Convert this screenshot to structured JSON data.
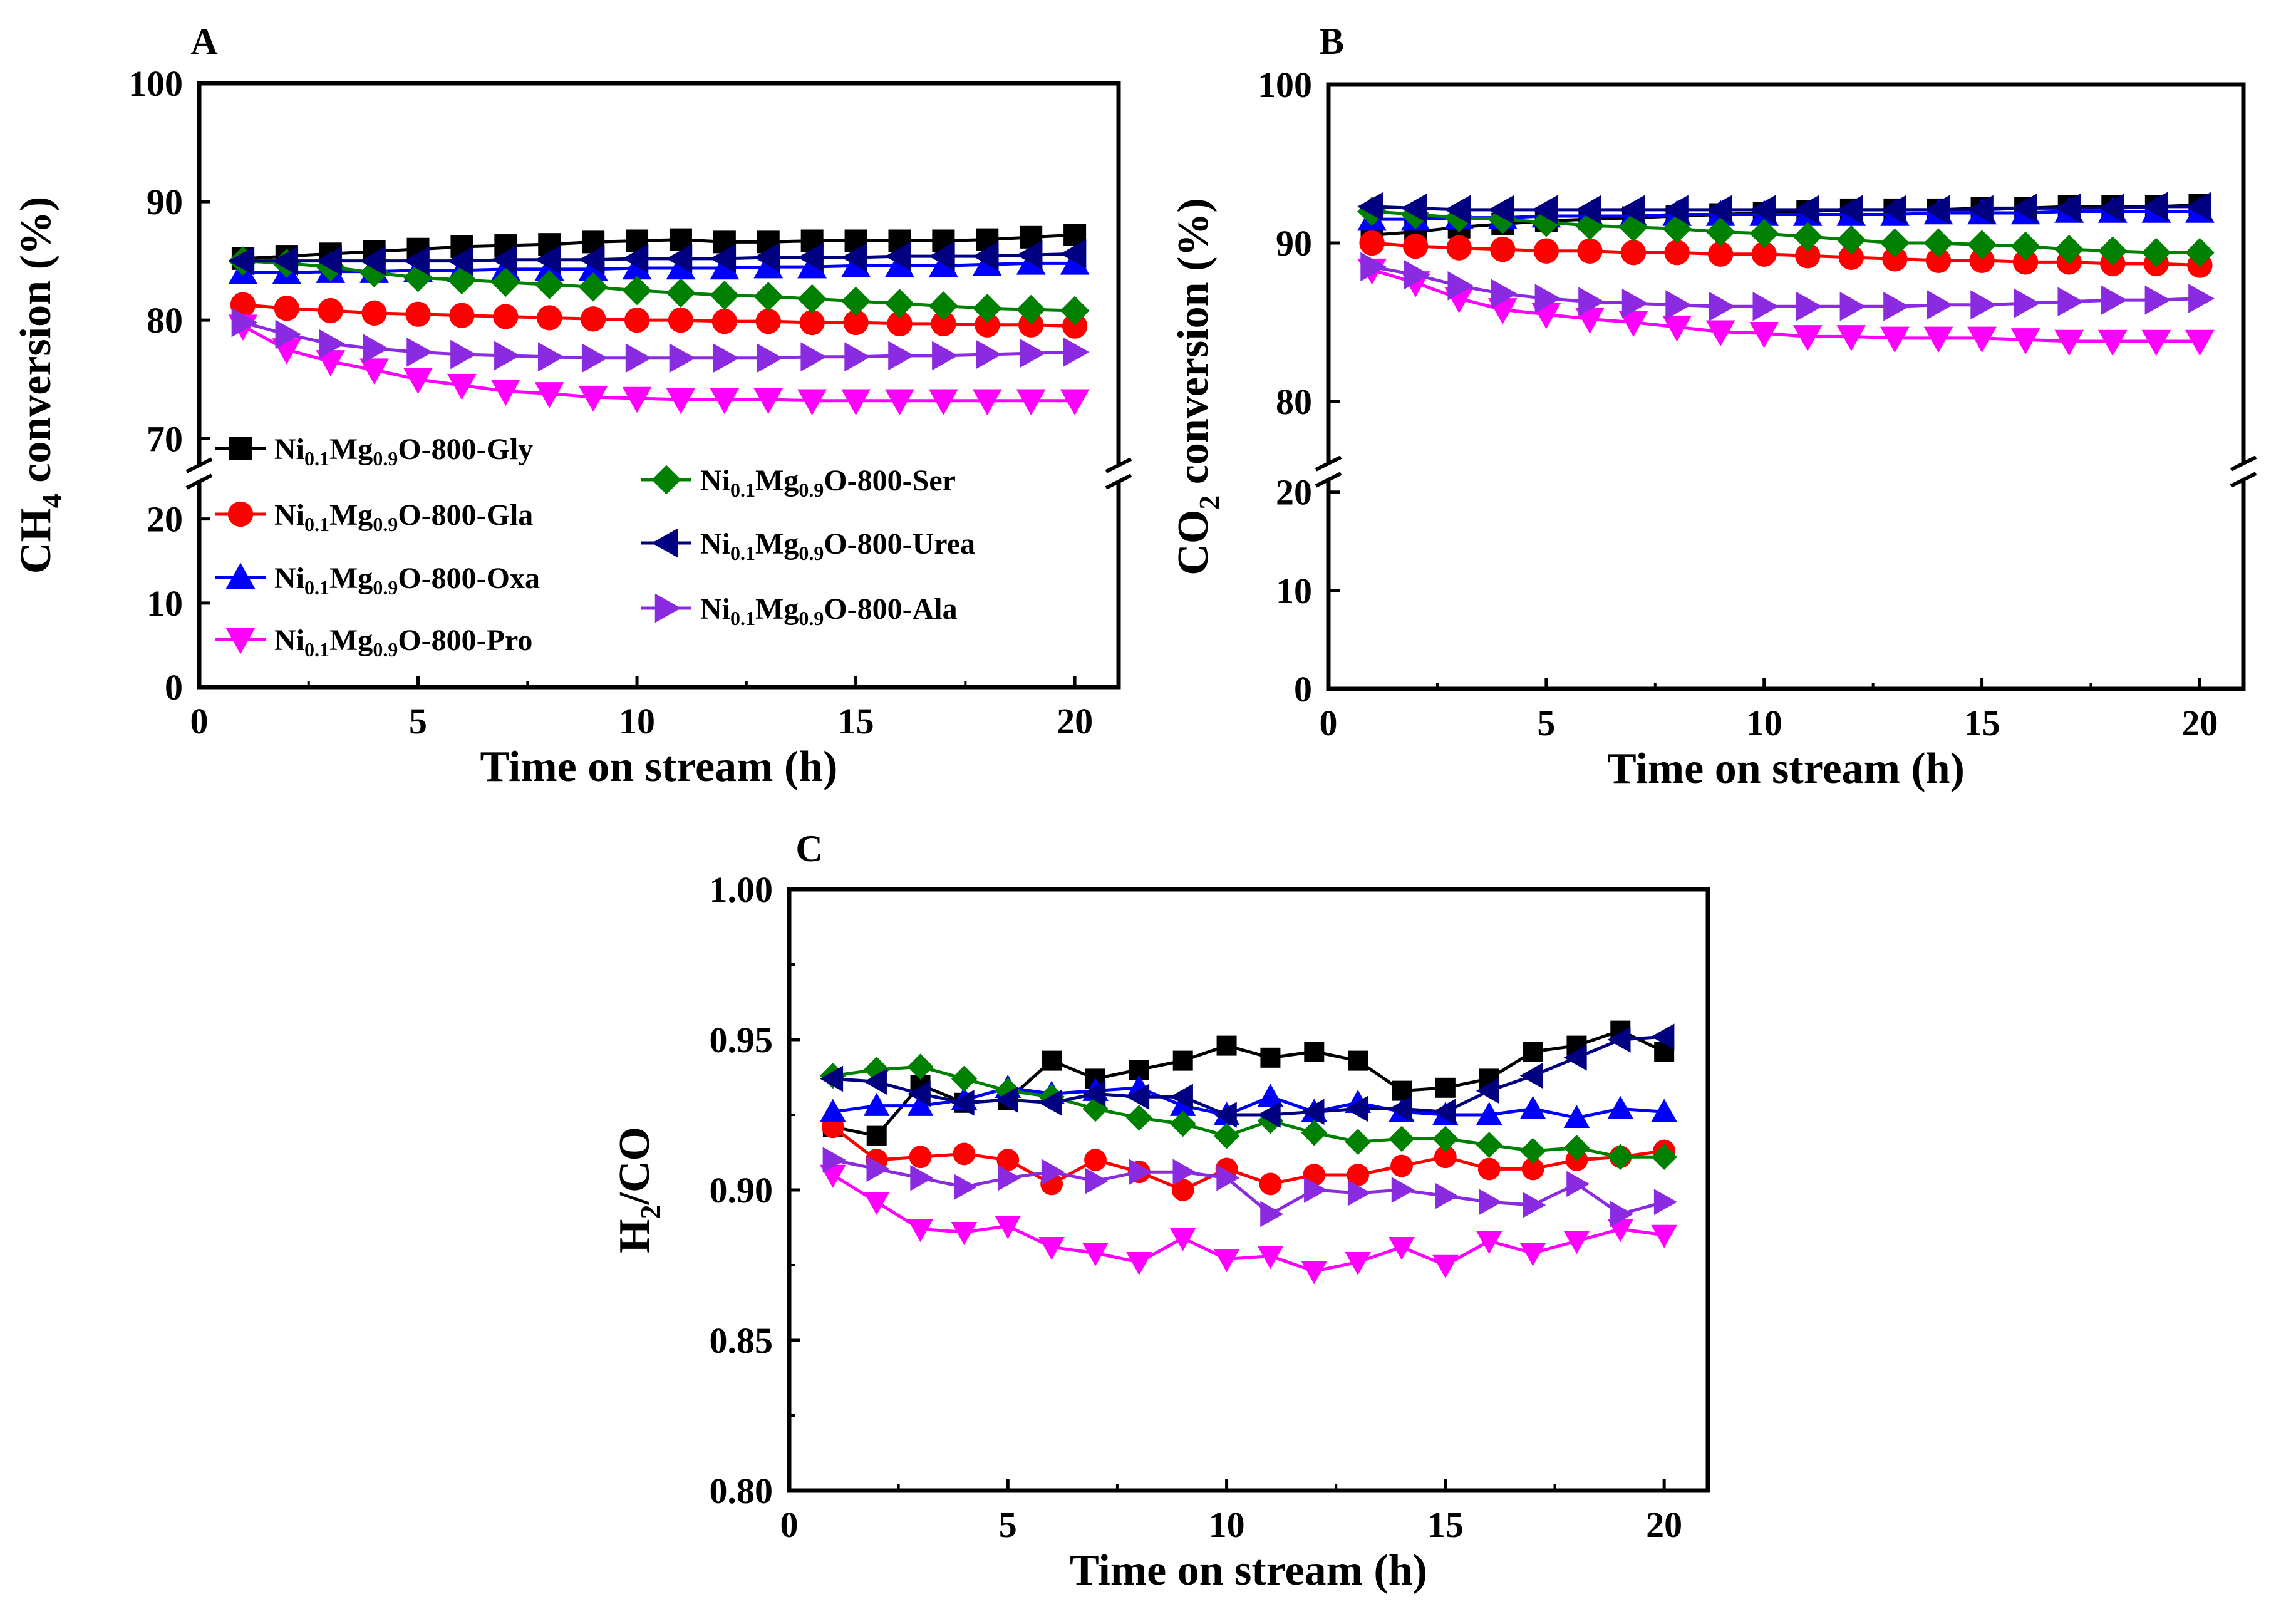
{
  "chart_data": [
    {
      "panel": "A",
      "type": "line",
      "xlabel": "Time on stream (h)",
      "ylabel": {
        "prefix": "CH",
        "sub": "4",
        "suffix": " conversion (%)"
      },
      "xlim": [
        0,
        21
      ],
      "xticks": [
        "0",
        "5",
        "10",
        "15",
        "20"
      ],
      "ylim_upper": [
        67,
        100
      ],
      "ylim_lower": [
        0,
        24
      ],
      "yticks_upper": [
        "70",
        "80",
        "90",
        "100"
      ],
      "yticks_lower": [
        "0",
        "10",
        "20"
      ],
      "x": [
        1,
        2,
        3,
        4,
        5,
        6,
        7,
        8,
        9,
        10,
        11,
        12,
        13,
        14,
        15,
        16,
        17,
        18,
        19,
        20
      ],
      "series": [
        {
          "name": "Gly",
          "values": [
            85.2,
            85.4,
            85.6,
            85.8,
            86.0,
            86.2,
            86.3,
            86.4,
            86.6,
            86.7,
            86.8,
            86.6,
            86.6,
            86.7,
            86.7,
            86.7,
            86.7,
            86.8,
            87.0,
            87.2
          ]
        },
        {
          "name": "Gla",
          "values": [
            81.3,
            81.0,
            80.8,
            80.6,
            80.5,
            80.4,
            80.3,
            80.2,
            80.1,
            80.0,
            80.0,
            79.9,
            79.9,
            79.8,
            79.8,
            79.7,
            79.7,
            79.6,
            79.6,
            79.5
          ]
        },
        {
          "name": "Oxa",
          "values": [
            84.0,
            84.0,
            84.1,
            84.1,
            84.2,
            84.2,
            84.3,
            84.3,
            84.3,
            84.4,
            84.4,
            84.4,
            84.5,
            84.5,
            84.6,
            84.6,
            84.6,
            84.7,
            84.8,
            84.8
          ]
        },
        {
          "name": "Pro",
          "values": [
            79.5,
            77.5,
            76.5,
            75.8,
            75.0,
            74.5,
            74.0,
            73.8,
            73.5,
            73.4,
            73.3,
            73.3,
            73.3,
            73.2,
            73.2,
            73.2,
            73.2,
            73.2,
            73.2,
            73.2
          ]
        },
        {
          "name": "Ser",
          "values": [
            85.0,
            84.8,
            84.5,
            84.0,
            83.6,
            83.4,
            83.2,
            83.0,
            82.8,
            82.5,
            82.3,
            82.1,
            82.0,
            81.8,
            81.6,
            81.4,
            81.2,
            81.0,
            80.9,
            80.8
          ]
        },
        {
          "name": "Urea",
          "values": [
            85.0,
            85.0,
            85.0,
            85.0,
            85.0,
            85.0,
            85.1,
            85.1,
            85.1,
            85.2,
            85.2,
            85.2,
            85.3,
            85.3,
            85.3,
            85.4,
            85.4,
            85.4,
            85.5,
            85.6
          ]
        },
        {
          "name": "Ala",
          "values": [
            79.8,
            78.8,
            78.0,
            77.6,
            77.3,
            77.1,
            77.0,
            76.9,
            76.8,
            76.8,
            76.8,
            76.8,
            76.8,
            76.9,
            76.9,
            77.0,
            77.0,
            77.1,
            77.2,
            77.3
          ]
        }
      ]
    },
    {
      "panel": "B",
      "type": "line",
      "xlabel": "Time on stream (h)",
      "ylabel": {
        "prefix": "CO",
        "sub": "2",
        "suffix": " conversion (%)"
      },
      "xlim": [
        0,
        21
      ],
      "xticks": [
        "0",
        "5",
        "10",
        "15",
        "20"
      ],
      "ylim_upper": [
        75.5,
        100
      ],
      "ylim_lower": [
        0,
        21
      ],
      "yticks_upper": [
        "80",
        "90",
        "100"
      ],
      "yticks_lower": [
        "0",
        "10",
        "20"
      ],
      "x": [
        1,
        2,
        3,
        4,
        5,
        6,
        7,
        8,
        9,
        10,
        11,
        12,
        13,
        14,
        15,
        16,
        17,
        18,
        19,
        20
      ],
      "series": [
        {
          "name": "Gly",
          "values": [
            90.5,
            90.7,
            91.0,
            91.2,
            91.4,
            91.5,
            91.6,
            91.7,
            91.8,
            91.9,
            92.0,
            92.1,
            92.1,
            92.1,
            92.2,
            92.2,
            92.3,
            92.3,
            92.3,
            92.4
          ]
        },
        {
          "name": "Gla",
          "values": [
            90.0,
            89.8,
            89.7,
            89.6,
            89.5,
            89.5,
            89.4,
            89.4,
            89.3,
            89.3,
            89.2,
            89.1,
            89.0,
            88.9,
            88.9,
            88.8,
            88.8,
            88.7,
            88.7,
            88.6
          ]
        },
        {
          "name": "Oxa",
          "values": [
            91.5,
            91.5,
            91.6,
            91.6,
            91.7,
            91.7,
            91.7,
            91.8,
            91.8,
            91.8,
            91.8,
            91.8,
            91.8,
            91.9,
            91.9,
            91.9,
            92.0,
            92.0,
            92.0,
            92.0
          ]
        },
        {
          "name": "Pro",
          "values": [
            88.3,
            87.5,
            86.5,
            85.8,
            85.5,
            85.2,
            85.0,
            84.7,
            84.4,
            84.3,
            84.1,
            84.1,
            84.0,
            84.0,
            84.0,
            83.9,
            83.8,
            83.8,
            83.8,
            83.8
          ]
        },
        {
          "name": "Ser",
          "values": [
            92.0,
            91.8,
            91.6,
            91.5,
            91.3,
            91.1,
            91.0,
            90.9,
            90.7,
            90.6,
            90.4,
            90.2,
            90.0,
            90.0,
            89.9,
            89.8,
            89.6,
            89.5,
            89.4,
            89.4
          ]
        },
        {
          "name": "Urea",
          "values": [
            92.3,
            92.2,
            92.1,
            92.1,
            92.1,
            92.1,
            92.1,
            92.1,
            92.1,
            92.1,
            92.1,
            92.1,
            92.1,
            92.1,
            92.1,
            92.2,
            92.2,
            92.2,
            92.3,
            92.3
          ]
        },
        {
          "name": "Ala",
          "values": [
            88.5,
            88.0,
            87.3,
            86.8,
            86.5,
            86.3,
            86.2,
            86.1,
            86.0,
            86.0,
            86.0,
            86.0,
            86.0,
            86.1,
            86.1,
            86.2,
            86.3,
            86.4,
            86.4,
            86.5
          ]
        }
      ]
    },
    {
      "panel": "C",
      "type": "line",
      "xlabel": "Time on stream (h)",
      "ylabel": {
        "prefix": "H",
        "sub": "2",
        "suffix": "/CO"
      },
      "xlim": [
        0,
        21
      ],
      "xticks": [
        "0",
        "5",
        "10",
        "15",
        "20"
      ],
      "ylim": [
        0.8,
        1.0
      ],
      "yticks": [
        "0.80",
        "0.85",
        "0.90",
        "0.95",
        "1.00"
      ],
      "x": [
        1,
        2,
        3,
        4,
        5,
        6,
        7,
        8,
        9,
        10,
        11,
        12,
        13,
        14,
        15,
        16,
        17,
        18,
        19,
        20
      ],
      "series": [
        {
          "name": "Gly",
          "values": [
            0.921,
            0.918,
            0.935,
            0.929,
            0.93,
            0.943,
            0.937,
            0.94,
            0.943,
            0.948,
            0.944,
            0.946,
            0.943,
            0.933,
            0.934,
            0.937,
            0.946,
            0.948,
            0.953,
            0.946
          ]
        },
        {
          "name": "Gla",
          "values": [
            0.921,
            0.91,
            0.911,
            0.912,
            0.91,
            0.902,
            0.91,
            0.906,
            0.9,
            0.907,
            0.902,
            0.905,
            0.905,
            0.908,
            0.911,
            0.907,
            0.907,
            0.91,
            0.911,
            0.913
          ]
        },
        {
          "name": "Oxa",
          "values": [
            0.926,
            0.928,
            0.928,
            0.93,
            0.934,
            0.932,
            0.933,
            0.934,
            0.928,
            0.925,
            0.931,
            0.926,
            0.929,
            0.926,
            0.925,
            0.925,
            0.927,
            0.924,
            0.927,
            0.926
          ]
        },
        {
          "name": "Pro",
          "values": [
            0.905,
            0.896,
            0.887,
            0.886,
            0.888,
            0.881,
            0.879,
            0.876,
            0.884,
            0.877,
            0.878,
            0.873,
            0.876,
            0.881,
            0.875,
            0.883,
            0.879,
            0.883,
            0.887,
            0.885
          ]
        },
        {
          "name": "Ser",
          "values": [
            0.938,
            0.94,
            0.941,
            0.937,
            0.933,
            0.931,
            0.927,
            0.924,
            0.922,
            0.918,
            0.923,
            0.919,
            0.916,
            0.917,
            0.917,
            0.915,
            0.913,
            0.914,
            0.911,
            0.911
          ]
        },
        {
          "name": "Urea",
          "values": [
            0.937,
            0.936,
            0.932,
            0.929,
            0.93,
            0.929,
            0.932,
            0.931,
            0.931,
            0.925,
            0.925,
            0.926,
            0.927,
            0.927,
            0.926,
            0.933,
            0.938,
            0.944,
            0.95,
            0.951
          ]
        },
        {
          "name": "Ala",
          "values": [
            0.91,
            0.907,
            0.904,
            0.901,
            0.904,
            0.906,
            0.903,
            0.906,
            0.906,
            0.904,
            0.892,
            0.9,
            0.899,
            0.9,
            0.898,
            0.896,
            0.895,
            0.902,
            0.892,
            0.896
          ]
        }
      ]
    }
  ],
  "series_styles": [
    {
      "name": "Gly",
      "color": "#000000",
      "marker": "square"
    },
    {
      "name": "Gla",
      "color": "#ff0000",
      "marker": "circle"
    },
    {
      "name": "Oxa",
      "color": "#0000ff",
      "marker": "triangle-up"
    },
    {
      "name": "Pro",
      "color": "#ff00ff",
      "marker": "triangle-down"
    },
    {
      "name": "Ser",
      "color": "#008000",
      "marker": "diamond"
    },
    {
      "name": "Urea",
      "color": "#000080",
      "marker": "triangle-left"
    },
    {
      "name": "Ala",
      "color": "#8a2be2",
      "marker": "triangle-right"
    }
  ],
  "legend": [
    {
      "series": "Gly",
      "ni": "Ni",
      "ni_sub": "0.1",
      "mg": "Mg",
      "mg_sub": "0.9",
      "tail": "O-800-Gly"
    },
    {
      "series": "Gla",
      "ni": "Ni",
      "ni_sub": "0.1",
      "mg": "Mg",
      "mg_sub": "0.9",
      "tail": "O-800-Gla"
    },
    {
      "series": "Oxa",
      "ni": "Ni",
      "ni_sub": "0.1",
      "mg": "Mg",
      "mg_sub": "0.9",
      "tail": "O-800-Oxa"
    },
    {
      "series": "Pro",
      "ni": "Ni",
      "ni_sub": "0.1",
      "mg": "Mg",
      "mg_sub": "0.9",
      "tail": "O-800-Pro"
    },
    {
      "series": "Ser",
      "ni": "Ni",
      "ni_sub": "0.1",
      "mg": "Mg",
      "mg_sub": "0.9",
      "tail": "O-800-Ser"
    },
    {
      "series": "Urea",
      "ni": "Ni",
      "ni_sub": "0.1",
      "mg": "Mg",
      "mg_sub": "0.9",
      "tail": "O-800-Urea"
    },
    {
      "series": "Ala",
      "ni": "Ni",
      "ni_sub": "0.1",
      "mg": "Mg",
      "mg_sub": "0.9",
      "tail": "O-800-Ala"
    }
  ]
}
